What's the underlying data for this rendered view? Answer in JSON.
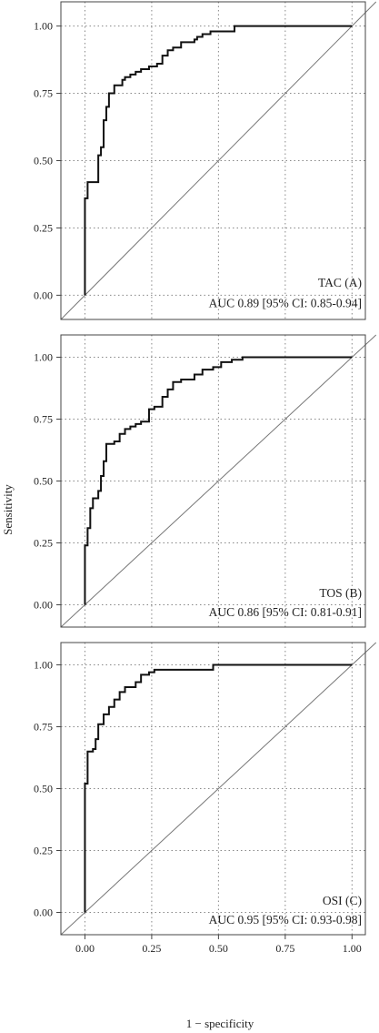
{
  "figure": {
    "xlabel": "1 − specificity",
    "ylabel": "Sensitivity"
  },
  "chart_data": [
    {
      "type": "line",
      "panel": "A",
      "title": "TAC (A)",
      "annotation": "AUC 0.89 [95% CI: 0.85-0.94]",
      "xlim": [
        -0.09,
        1.05
      ],
      "ylim": [
        -0.09,
        1.09
      ],
      "xticks": [
        0.0,
        0.25,
        0.5,
        0.75,
        1.0
      ],
      "yticks": [
        0.0,
        0.25,
        0.5,
        0.75,
        1.0
      ],
      "xtick_labels": [
        "0.00",
        "0.25",
        "0.50",
        "0.75",
        "1.00"
      ],
      "ytick_labels": [
        "0.00",
        "0.25",
        "0.50",
        "0.75",
        "1.00"
      ],
      "grid": true,
      "diagonal": true,
      "x": [
        0.0,
        0.0,
        0.0,
        0.01,
        0.01,
        0.05,
        0.05,
        0.06,
        0.06,
        0.07,
        0.07,
        0.08,
        0.08,
        0.09,
        0.09,
        0.11,
        0.11,
        0.14,
        0.14,
        0.15,
        0.15,
        0.17,
        0.17,
        0.19,
        0.19,
        0.21,
        0.21,
        0.24,
        0.24,
        0.27,
        0.27,
        0.29,
        0.29,
        0.31,
        0.31,
        0.33,
        0.33,
        0.34,
        0.34,
        0.36,
        0.36,
        0.41,
        0.41,
        0.42,
        0.42,
        0.44,
        0.44,
        0.47,
        0.47,
        0.56,
        0.56,
        1.0
      ],
      "y": [
        0.0,
        0.36,
        0.36,
        0.36,
        0.42,
        0.42,
        0.52,
        0.52,
        0.55,
        0.55,
        0.65,
        0.65,
        0.7,
        0.7,
        0.75,
        0.75,
        0.78,
        0.78,
        0.8,
        0.8,
        0.81,
        0.81,
        0.82,
        0.82,
        0.83,
        0.83,
        0.84,
        0.84,
        0.85,
        0.85,
        0.86,
        0.86,
        0.89,
        0.89,
        0.91,
        0.91,
        0.92,
        0.92,
        0.92,
        0.92,
        0.94,
        0.94,
        0.95,
        0.95,
        0.96,
        0.96,
        0.97,
        0.97,
        0.98,
        0.98,
        1.0,
        1.0
      ]
    },
    {
      "type": "line",
      "panel": "B",
      "title": "TOS (B)",
      "annotation": "AUC 0.86 [95% CI: 0.81-0.91]",
      "xlim": [
        -0.09,
        1.05
      ],
      "ylim": [
        -0.09,
        1.09
      ],
      "xticks": [
        0.0,
        0.25,
        0.5,
        0.75,
        1.0
      ],
      "yticks": [
        0.0,
        0.25,
        0.5,
        0.75,
        1.0
      ],
      "xtick_labels": [
        "0.00",
        "0.25",
        "0.50",
        "0.75",
        "1.00"
      ],
      "ytick_labels": [
        "0.00",
        "0.25",
        "0.50",
        "0.75",
        "1.00"
      ],
      "grid": true,
      "diagonal": true,
      "x": [
        0.0,
        0.0,
        0.0,
        0.01,
        0.01,
        0.02,
        0.02,
        0.03,
        0.03,
        0.05,
        0.05,
        0.06,
        0.06,
        0.07,
        0.07,
        0.08,
        0.08,
        0.11,
        0.11,
        0.13,
        0.13,
        0.15,
        0.15,
        0.17,
        0.17,
        0.19,
        0.19,
        0.21,
        0.21,
        0.24,
        0.24,
        0.26,
        0.26,
        0.29,
        0.29,
        0.31,
        0.31,
        0.33,
        0.33,
        0.36,
        0.36,
        0.41,
        0.41,
        0.44,
        0.44,
        0.48,
        0.48,
        0.51,
        0.51,
        0.55,
        0.55,
        0.59,
        0.59,
        1.0
      ],
      "y": [
        0.0,
        0.24,
        0.24,
        0.24,
        0.31,
        0.31,
        0.39,
        0.39,
        0.43,
        0.43,
        0.46,
        0.46,
        0.52,
        0.52,
        0.58,
        0.58,
        0.65,
        0.65,
        0.66,
        0.66,
        0.69,
        0.69,
        0.71,
        0.71,
        0.72,
        0.72,
        0.73,
        0.73,
        0.74,
        0.74,
        0.79,
        0.79,
        0.8,
        0.8,
        0.84,
        0.84,
        0.87,
        0.87,
        0.9,
        0.9,
        0.91,
        0.91,
        0.93,
        0.93,
        0.95,
        0.95,
        0.96,
        0.96,
        0.98,
        0.98,
        0.99,
        0.99,
        1.0,
        1.0
      ]
    },
    {
      "type": "line",
      "panel": "C",
      "title": "OSI (C)",
      "annotation": "AUC 0.95 [95% CI: 0.93-0.98]",
      "xlim": [
        -0.09,
        1.05
      ],
      "ylim": [
        -0.09,
        1.09
      ],
      "xticks": [
        0.0,
        0.25,
        0.5,
        0.75,
        1.0
      ],
      "yticks": [
        0.0,
        0.25,
        0.5,
        0.75,
        1.0
      ],
      "xtick_labels": [
        "0.00",
        "0.25",
        "0.50",
        "0.75",
        "1.00"
      ],
      "ytick_labels": [
        "0.00",
        "0.25",
        "0.50",
        "0.75",
        "1.00"
      ],
      "grid": true,
      "diagonal": true,
      "x": [
        0.0,
        0.0,
        0.0,
        0.01,
        0.01,
        0.03,
        0.03,
        0.04,
        0.04,
        0.05,
        0.05,
        0.07,
        0.07,
        0.09,
        0.09,
        0.11,
        0.11,
        0.13,
        0.13,
        0.15,
        0.15,
        0.19,
        0.19,
        0.21,
        0.21,
        0.24,
        0.24,
        0.26,
        0.26,
        0.48,
        0.48,
        1.0
      ],
      "y": [
        0.0,
        0.52,
        0.52,
        0.52,
        0.65,
        0.65,
        0.66,
        0.66,
        0.7,
        0.7,
        0.76,
        0.76,
        0.8,
        0.8,
        0.83,
        0.83,
        0.86,
        0.86,
        0.89,
        0.89,
        0.91,
        0.91,
        0.93,
        0.93,
        0.96,
        0.96,
        0.97,
        0.97,
        0.98,
        0.98,
        1.0,
        1.0
      ]
    }
  ],
  "colors": {
    "curve": "#111111",
    "diagonal": "#777777",
    "grid": "#888888",
    "frame": "#444444",
    "text": "#222222"
  }
}
